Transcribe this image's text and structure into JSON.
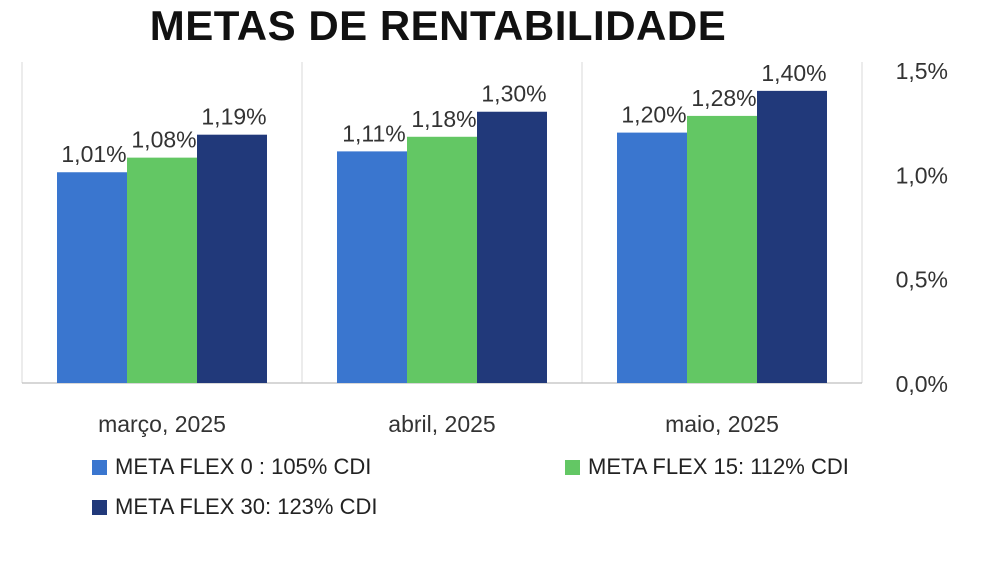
{
  "chart_data": {
    "type": "bar",
    "title": "METAS DE RENTABILIDADE",
    "categories": [
      "março, 2025",
      "abril, 2025",
      "maio, 2025"
    ],
    "series": [
      {
        "name": "META FLEX 0 : 105% CDI",
        "color": "#3A76CF",
        "values": [
          1.01,
          1.11,
          1.2
        ],
        "labels": [
          "1,01%",
          "1,11%",
          "1,20%"
        ]
      },
      {
        "name": "META FLEX 15: 112% CDI",
        "color": "#63C764",
        "values": [
          1.08,
          1.18,
          1.28
        ],
        "labels": [
          "1,08%",
          "1,18%",
          "1,28%"
        ]
      },
      {
        "name": "META FLEX 30: 123% CDI",
        "color": "#21397A",
        "values": [
          1.19,
          1.3,
          1.4
        ],
        "labels": [
          "1,19%",
          "1,30%",
          "1,40%"
        ]
      }
    ],
    "ylim": [
      0,
      1.5
    ],
    "yticks": [
      0,
      0.5,
      1.0,
      1.5
    ],
    "ytick_labels": [
      "0,0%",
      "0,5%",
      "1,0%",
      "1,5%"
    ],
    "y_axis_side": "right",
    "grid": false,
    "legend_position": "bottom"
  }
}
